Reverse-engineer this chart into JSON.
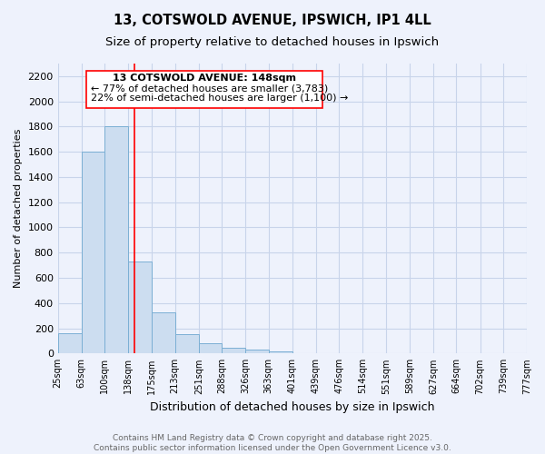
{
  "title1": "13, COTSWOLD AVENUE, IPSWICH, IP1 4LL",
  "title2": "Size of property relative to detached houses in Ipswich",
  "xlabel": "Distribution of detached houses by size in Ipswich",
  "ylabel": "Number of detached properties",
  "bar_lefts": [
    25,
    63,
    100,
    138,
    175,
    213,
    251,
    288,
    326,
    363,
    401,
    439,
    476,
    514,
    551,
    589,
    627,
    664,
    702,
    739
  ],
  "bar_rights": [
    63,
    100,
    138,
    175,
    213,
    251,
    288,
    326,
    363,
    401,
    439,
    476,
    514,
    551,
    589,
    627,
    664,
    702,
    739,
    777
  ],
  "bar_heights": [
    160,
    1600,
    1800,
    730,
    325,
    155,
    80,
    45,
    28,
    15,
    0,
    0,
    0,
    0,
    0,
    0,
    0,
    0,
    0,
    0
  ],
  "bar_color": "#ccddf0",
  "bar_edgecolor": "#7bafd4",
  "property_line_x": 148,
  "ann_text1": "13 COTSWOLD AVENUE: 148sqm",
  "ann_text2": "← 77% of detached houses are smaller (3,783)",
  "ann_text3": "22% of semi-detached houses are larger (1,100) →",
  "yticks": [
    0,
    200,
    400,
    600,
    800,
    1000,
    1200,
    1400,
    1600,
    1800,
    2000,
    2200
  ],
  "ylim": [
    0,
    2300
  ],
  "xlim_left": 25,
  "xlim_right": 777,
  "tick_positions": [
    25,
    63,
    100,
    138,
    175,
    213,
    251,
    288,
    326,
    363,
    401,
    439,
    476,
    514,
    551,
    589,
    627,
    664,
    702,
    739,
    777
  ],
  "tick_labels": [
    "25sqm",
    "63sqm",
    "100sqm",
    "138sqm",
    "175sqm",
    "213sqm",
    "251sqm",
    "288sqm",
    "326sqm",
    "363sqm",
    "401sqm",
    "439sqm",
    "476sqm",
    "514sqm",
    "551sqm",
    "589sqm",
    "627sqm",
    "664sqm",
    "702sqm",
    "739sqm",
    "777sqm"
  ],
  "footer1": "Contains HM Land Registry data © Crown copyright and database right 2025.",
  "footer2": "Contains public sector information licensed under the Open Government Licence v3.0.",
  "bg_color": "#eef2fc",
  "grid_color": "#c8d4ea",
  "title_fontsize": 10.5,
  "subtitle_fontsize": 9.5,
  "ylabel_fontsize": 8,
  "xlabel_fontsize": 9,
  "ytick_fontsize": 8,
  "xtick_fontsize": 7,
  "ann_fontsize": 8,
  "footer_fontsize": 6.5
}
